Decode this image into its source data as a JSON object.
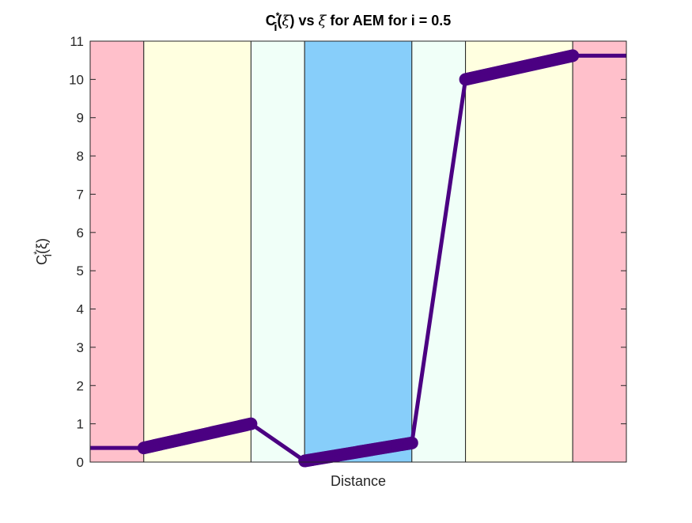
{
  "chart_data": {
    "type": "line",
    "title": {
      "prefix": "C",
      "sup": "*",
      "sub": "i",
      "rest1": "(",
      "xi1": "ξ",
      "rest2": ") vs ",
      "xi2": "ξ",
      "rest3": " for AEM for i = 0.5"
    },
    "xlabel": "Distance",
    "ylabel": {
      "prefix": "C",
      "sup": "*",
      "sub": "i",
      "rest": "(ξ)"
    },
    "xlim": [
      0,
      10
    ],
    "ylim": [
      0,
      11
    ],
    "y_ticks": [
      0,
      1,
      2,
      3,
      4,
      5,
      6,
      7,
      8,
      9,
      10,
      11
    ],
    "x_ticks": [],
    "grid": false,
    "legend": "none",
    "regions": [
      {
        "start": 0,
        "end": 1,
        "color": "#ffc0cb"
      },
      {
        "start": 1,
        "end": 3,
        "color": "#ffffe0"
      },
      {
        "start": 3,
        "end": 4,
        "color": "#f0fff8"
      },
      {
        "start": 4,
        "end": 6,
        "color": "#87cefa"
      },
      {
        "start": 6,
        "end": 7,
        "color": "#f0fff8"
      },
      {
        "start": 7,
        "end": 9,
        "color": "#ffffe0"
      },
      {
        "start": 9,
        "end": 10,
        "color": "#ffc0cb"
      }
    ],
    "series": [
      {
        "line_color": "#4b0082",
        "x": [
          0,
          1,
          3,
          4,
          6,
          7,
          9,
          10
        ],
        "y": [
          0.37,
          0.37,
          1.0,
          0.03,
          0.5,
          10.0,
          10.62,
          10.62
        ]
      }
    ],
    "marker_segments": [
      {
        "x0": 1,
        "y0": 0.37,
        "x1": 3,
        "y1": 1.0
      },
      {
        "x0": 4,
        "y0": 0.03,
        "x1": 6,
        "y1": 0.5
      },
      {
        "x0": 7,
        "y0": 10.0,
        "x1": 9,
        "y1": 10.62
      }
    ],
    "marker_color": "#4b0082"
  }
}
